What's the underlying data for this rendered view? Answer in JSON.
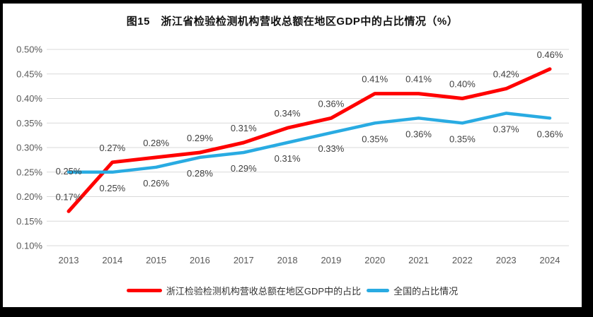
{
  "title": "图15　浙江省检验检测机构营收总额在地区GDP中的占比情况（%）",
  "chart_data": {
    "type": "line",
    "x": [
      "2013",
      "2014",
      "2015",
      "2016",
      "2017",
      "2018",
      "2019",
      "2020",
      "2021",
      "2022",
      "2023",
      "2024"
    ],
    "series": [
      {
        "name": "浙江检验检测机构营收总额在地区GDP中的占比",
        "color": "#FF0000",
        "values": [
          0.17,
          0.27,
          0.28,
          0.29,
          0.31,
          0.34,
          0.36,
          0.41,
          0.41,
          0.4,
          0.42,
          0.46
        ],
        "labels": [
          "0.17%",
          "0.27%",
          "0.28%",
          "0.29%",
          "0.31%",
          "0.34%",
          "0.36%",
          "0.41%",
          "0.41%",
          "0.40%",
          "0.42%",
          "0.46%"
        ],
        "label_position": "above"
      },
      {
        "name": "全国的占比情况",
        "color": "#29ABE2",
        "values": [
          0.25,
          0.25,
          0.26,
          0.28,
          0.29,
          0.31,
          0.33,
          0.35,
          0.36,
          0.35,
          0.37,
          0.36
        ],
        "labels": [
          "0.25%",
          "0.25%",
          "0.26%",
          "0.28%",
          "0.29%",
          "0.31%",
          "0.33%",
          "0.35%",
          "0.36%",
          "0.35%",
          "0.37%",
          "0.36%"
        ],
        "label_position": "below",
        "first_label_position": "above"
      }
    ],
    "y_axis": {
      "min": 0.1,
      "max": 0.5,
      "step": 0.05,
      "tick_labels": [
        "0.50%",
        "0.45%",
        "0.40%",
        "0.35%",
        "0.30%",
        "0.25%",
        "0.20%",
        "0.15%",
        "0.10%"
      ]
    },
    "grid": true,
    "legend_position": "bottom",
    "colors": {
      "grid_line": "#D9D9D9",
      "axis_text": "#595959",
      "data_label_text": "#404040",
      "frame_border": "#000000",
      "plot_background": "#FFFFFF"
    }
  }
}
